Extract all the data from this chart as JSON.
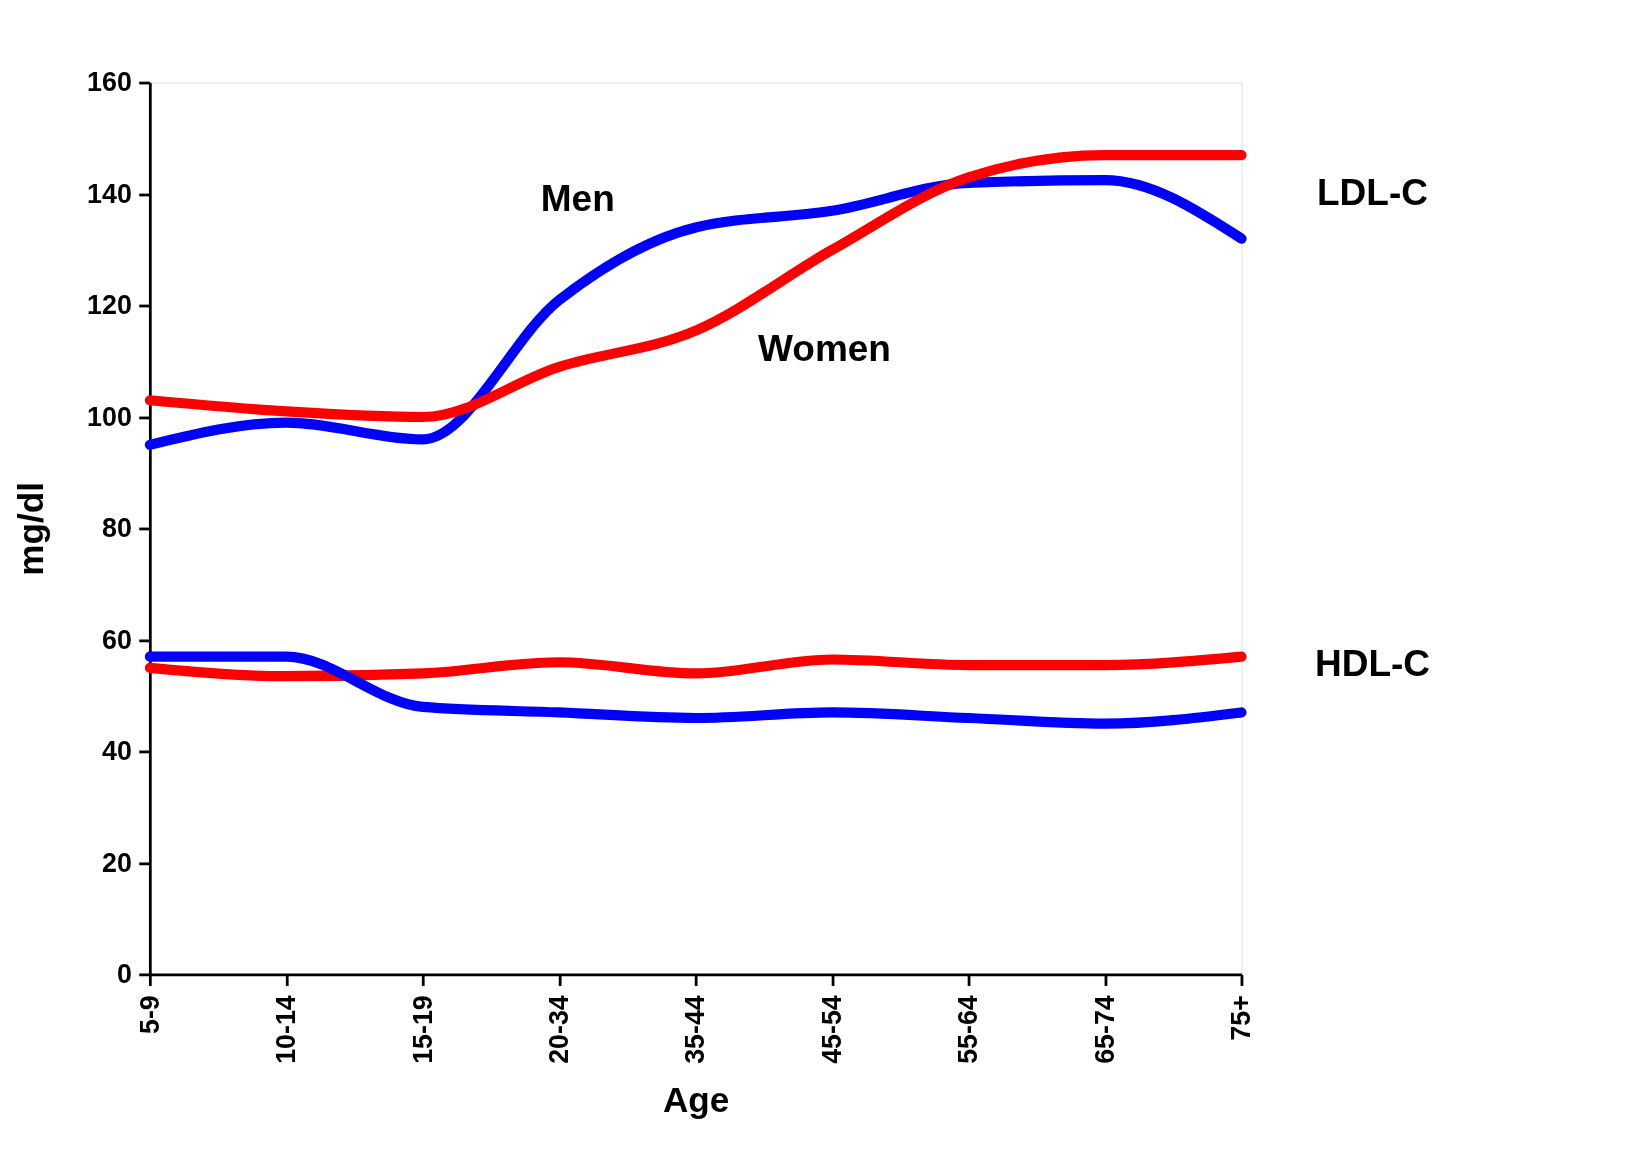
{
  "chart_data": {
    "type": "line",
    "xlabel": "Age",
    "ylabel": "mg/dl",
    "categories": [
      "5-9",
      "10-14",
      "15-19",
      "20-34",
      "35-44",
      "45-54",
      "55-64",
      "65-74",
      "75+"
    ],
    "series": [
      {
        "name": "Men",
        "color": "#0000ff",
        "values": [
          95,
          99,
          96,
          121,
          134,
          137,
          142,
          142.5,
          132
        ]
      },
      {
        "name": "Women",
        "color": "#ff0000",
        "values": [
          103,
          101,
          100,
          109,
          115.5,
          130,
          143,
          147,
          147
        ]
      },
      {
        "color": "#ff0000",
        "values": [
          55,
          53.5,
          54,
          56,
          54,
          56.5,
          55.5,
          55.5,
          57
        ]
      },
      {
        "color": "#0000ff",
        "values": [
          57,
          57,
          48,
          47,
          46,
          47,
          46,
          45,
          47
        ]
      }
    ],
    "ylim": [
      0,
      160
    ],
    "yticks": [
      0,
      20,
      40,
      60,
      80,
      100,
      120,
      140,
      160
    ],
    "grid": false,
    "line_style": "solid",
    "marker": "none",
    "annotations": [
      "LDL-C",
      "HDL-C"
    ]
  }
}
